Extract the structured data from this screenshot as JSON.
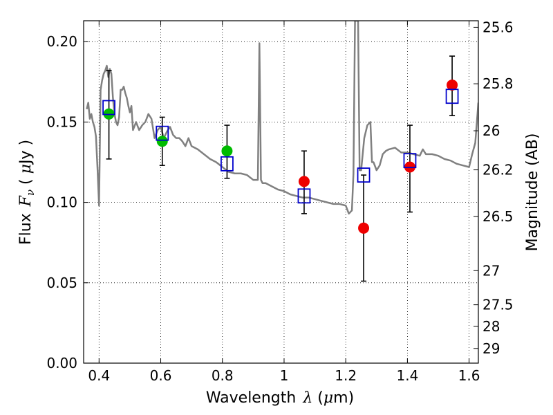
{
  "chart_data": {
    "type": "scatter",
    "xlabel": "Wavelength",
    "xlabel_symbol": "λ",
    "xlabel_unit_open": " (",
    "xlabel_unit_mu": "μ",
    "xlabel_unit_rest": "m)",
    "ylabel": "Flux",
    "ylabel_symbol": "F",
    "ylabel_symbol_sub": "ν",
    "ylabel_unit_open": " ( ",
    "ylabel_unit_mu": "μ",
    "ylabel_unit_rest": "Jy )",
    "y2label": "Magnitude (AB)",
    "xlim": [
      0.35,
      1.63
    ],
    "ylim": [
      0.0,
      0.213
    ],
    "xticks": [
      "0.4",
      "0.6",
      "0.8",
      "1",
      "1.2",
      "1.4",
      "1.6"
    ],
    "xtick_values": [
      0.4,
      0.6,
      0.8,
      1.0,
      1.2,
      1.4,
      1.6
    ],
    "yticks": [
      "0.00",
      "0.05",
      "0.10",
      "0.15",
      "0.20"
    ],
    "ytick_values": [
      0.0,
      0.05,
      0.1,
      0.15,
      0.2
    ],
    "y2ticks": [
      "25.6",
      "25.8",
      "26",
      "26.2",
      "26.5",
      "27",
      "27.5",
      "28",
      "29"
    ],
    "y2tick_values": [
      25.6,
      25.8,
      26.0,
      26.2,
      26.5,
      27.0,
      27.5,
      28.0,
      29.0
    ],
    "grid": true,
    "colors": {
      "model": "#808080",
      "green": "#00bb00",
      "red": "#ee0000",
      "box": "#0000cc",
      "errorbar": "#000000"
    },
    "series": [
      {
        "kind": "model-spectrum",
        "x": [
          0.36,
          0.365,
          0.37,
          0.375,
          0.38,
          0.385,
          0.39,
          0.395,
          0.4,
          0.405,
          0.41,
          0.415,
          0.42,
          0.425,
          0.43,
          0.435,
          0.44,
          0.445,
          0.45,
          0.455,
          0.46,
          0.465,
          0.47,
          0.475,
          0.48,
          0.485,
          0.49,
          0.495,
          0.5,
          0.505,
          0.51,
          0.52,
          0.53,
          0.54,
          0.55,
          0.56,
          0.57,
          0.58,
          0.59,
          0.6,
          0.61,
          0.62,
          0.63,
          0.64,
          0.65,
          0.66,
          0.67,
          0.68,
          0.69,
          0.7,
          0.72,
          0.74,
          0.76,
          0.78,
          0.8,
          0.82,
          0.84,
          0.86,
          0.88,
          0.9,
          0.915,
          0.92,
          0.925,
          0.93,
          0.935,
          0.94,
          0.96,
          0.98,
          1.0,
          1.02,
          1.04,
          1.06,
          1.08,
          1.1,
          1.12,
          1.14,
          1.16,
          1.18,
          1.2,
          1.21,
          1.22,
          1.225,
          1.23,
          1.235,
          1.24,
          1.245,
          1.25,
          1.255,
          1.26,
          1.27,
          1.28,
          1.285,
          1.29,
          1.3,
          1.31,
          1.32,
          1.33,
          1.34,
          1.36,
          1.38,
          1.4,
          1.42,
          1.44,
          1.45,
          1.46,
          1.48,
          1.5,
          1.52,
          1.54,
          1.56,
          1.58,
          1.6,
          1.61,
          1.62,
          1.63
        ],
        "y": [
          0.158,
          0.162,
          0.152,
          0.155,
          0.15,
          0.147,
          0.141,
          0.121,
          0.098,
          0.17,
          0.176,
          0.18,
          0.182,
          0.185,
          0.178,
          0.183,
          0.18,
          0.165,
          0.155,
          0.15,
          0.148,
          0.153,
          0.17,
          0.17,
          0.172,
          0.168,
          0.165,
          0.16,
          0.156,
          0.16,
          0.145,
          0.15,
          0.145,
          0.148,
          0.15,
          0.155,
          0.152,
          0.14,
          0.145,
          0.147,
          0.14,
          0.144,
          0.147,
          0.142,
          0.14,
          0.14,
          0.138,
          0.135,
          0.14,
          0.135,
          0.133,
          0.13,
          0.127,
          0.125,
          0.122,
          0.119,
          0.118,
          0.118,
          0.117,
          0.114,
          0.114,
          0.199,
          0.114,
          0.112,
          0.112,
          0.112,
          0.11,
          0.108,
          0.107,
          0.105,
          0.104,
          0.103,
          0.103,
          0.102,
          0.101,
          0.1,
          0.099,
          0.099,
          0.098,
          0.093,
          0.095,
          0.118,
          0.213,
          0.213,
          0.213,
          0.12,
          0.12,
          0.13,
          0.14,
          0.148,
          0.15,
          0.125,
          0.125,
          0.12,
          0.123,
          0.13,
          0.132,
          0.133,
          0.134,
          0.131,
          0.131,
          0.13,
          0.129,
          0.133,
          0.13,
          0.13,
          0.129,
          0.127,
          0.126,
          0.124,
          0.123,
          0.122,
          0.13,
          0.137,
          0.162
        ]
      },
      {
        "kind": "photometry-green",
        "x": [
          0.432,
          0.605,
          0.815
        ],
        "y": [
          0.155,
          0.138,
          0.132
        ],
        "yerr_low": [
          0.127,
          0.123,
          0.115
        ],
        "yerr_high": [
          0.182,
          0.153,
          0.148
        ]
      },
      {
        "kind": "photometry-red",
        "x": [
          1.065,
          1.258,
          1.408,
          1.545
        ],
        "y": [
          0.113,
          0.084,
          0.122,
          0.173
        ],
        "yerr_low": [
          0.093,
          0.051,
          0.094,
          0.154
        ],
        "yerr_high": [
          0.132,
          0.117,
          0.148,
          0.191
        ]
      },
      {
        "kind": "model-boxes",
        "x": [
          0.432,
          0.605,
          0.815,
          1.065,
          1.258,
          1.408,
          1.545
        ],
        "y": [
          0.159,
          0.143,
          0.124,
          0.104,
          0.117,
          0.126,
          0.166
        ]
      }
    ]
  }
}
